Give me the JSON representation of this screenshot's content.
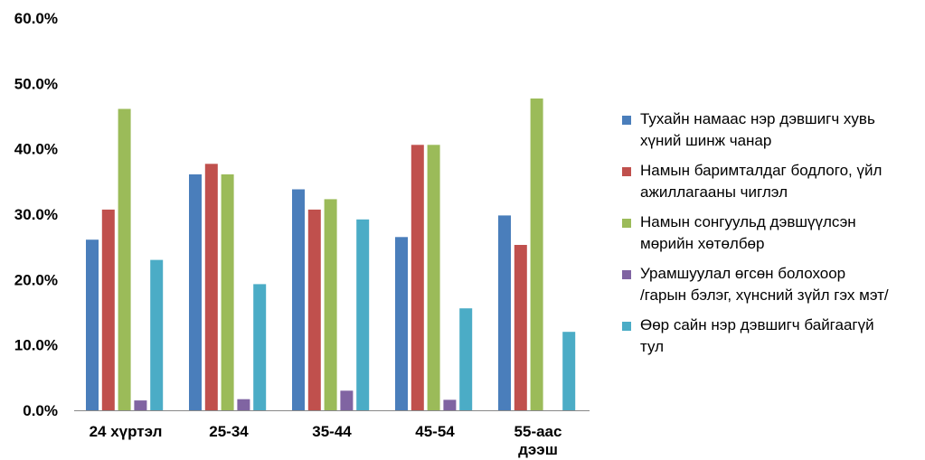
{
  "chart_data": {
    "type": "bar",
    "categories": [
      [
        "24 хүртэл"
      ],
      [
        "25-34"
      ],
      [
        "35-44"
      ],
      [
        "45-54"
      ],
      [
        "55-аас",
        "дээш"
      ]
    ],
    "ylim": [
      0,
      60
    ],
    "yticks": [
      "0.0%",
      "10.0%",
      "20.0%",
      "30.0%",
      "40.0%",
      "50.0%",
      "60.0%"
    ],
    "grid": false,
    "legend_position": "right",
    "series": [
      {
        "name": [
          "Тухайн намаас нэр дэвшигч хувь",
          "хүний шинж чанар"
        ],
        "color": "#4a7ebb",
        "values": [
          26.1,
          36.1,
          33.8,
          26.5,
          29.8
        ]
      },
      {
        "name": [
          "Намын баримталдаг бодлого, үйл",
          "ажиллагааны чиглэл"
        ],
        "color": "#c0504d",
        "values": [
          30.7,
          37.7,
          30.7,
          40.6,
          25.3
        ]
      },
      {
        "name": [
          "Намын сонгуульд дэвшүүлсэн",
          "мөрийн хөтөлбөр"
        ],
        "color": "#9bbb59",
        "values": [
          46.1,
          36.1,
          32.3,
          40.6,
          47.7
        ]
      },
      {
        "name": [
          "Урамшуулал өгсөн болохоор",
          "/гарын бэлэг, хүнсний зүйл гэх мэт/"
        ],
        "color": "#8064a2",
        "values": [
          1.5,
          1.7,
          3.0,
          1.6,
          0
        ]
      },
      {
        "name": [
          "Өөр сайн нэр дэвшигч байгаагүй",
          "тул"
        ],
        "color": "#4bacc6",
        "values": [
          23.0,
          19.3,
          29.2,
          15.6,
          12.0
        ]
      }
    ]
  }
}
